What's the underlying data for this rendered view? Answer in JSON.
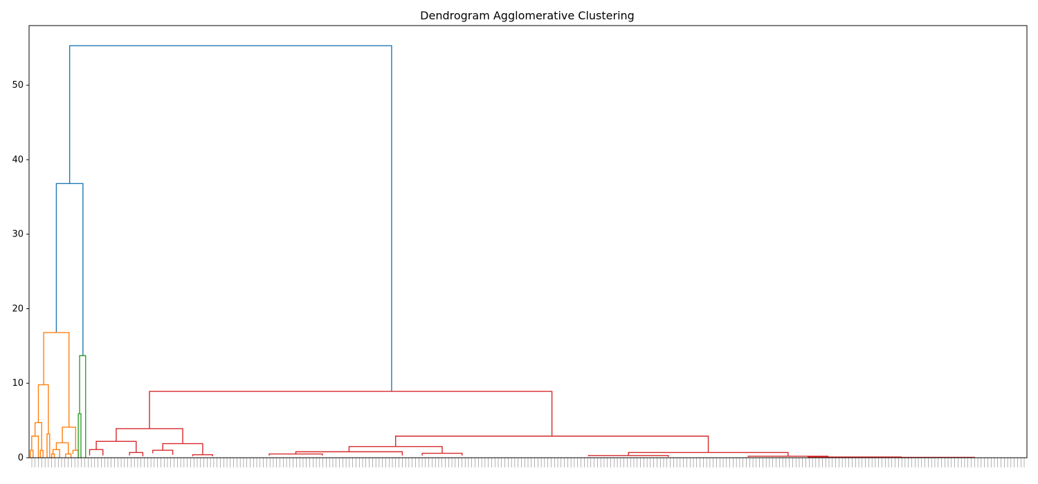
{
  "chart_data": {
    "type": "dendrogram",
    "title": "Dendrogram Agglomerative Clustering",
    "xlabel": "",
    "ylabel": "",
    "ylim": [
      0,
      58
    ],
    "yticks": [
      0,
      10,
      20,
      30,
      40,
      50
    ],
    "grid": false,
    "colors": {
      "top": "#1f77b4",
      "cluster_1": "#ff7f0e",
      "cluster_2": "#2ca02c",
      "cluster_3": "#d62728"
    },
    "leaves": {
      "count": 301
    },
    "links": [
      {
        "left": 6.1,
        "right": 54.5,
        "height": 55.3,
        "left_h": 36.8,
        "right_h": 8.9,
        "color": "top"
      },
      {
        "left": 4.1,
        "right": 8.1,
        "height": 36.8,
        "left_h": 16.8,
        "right_h": 13.7,
        "color": "top"
      },
      {
        "left": 2.2,
        "right": 6.0,
        "height": 16.8,
        "left_h": 9.8,
        "right_h": 4.1,
        "color": "cluster_1"
      },
      {
        "left": 1.4,
        "right": 2.9,
        "height": 9.8,
        "left_h": 4.7,
        "right_h": 3.2,
        "color": "cluster_1"
      },
      {
        "left": 0.9,
        "right": 1.9,
        "height": 4.7,
        "left_h": 2.9,
        "right_h": 1.0,
        "color": "cluster_1"
      },
      {
        "left": 0.4,
        "right": 1.4,
        "height": 2.9,
        "left_h": 1.0,
        "right_h": 0.0,
        "color": "cluster_1"
      },
      {
        "left": 0.2,
        "right": 0.6,
        "height": 1.0,
        "left_h": 0.0,
        "right_h": 0.0,
        "color": "cluster_1"
      },
      {
        "left": 1.7,
        "right": 2.1,
        "height": 1.0,
        "left_h": 0.0,
        "right_h": 0.0,
        "color": "cluster_1"
      },
      {
        "left": 2.7,
        "right": 3.1,
        "height": 3.2,
        "left_h": 0.0,
        "right_h": 0.0,
        "color": "cluster_1"
      },
      {
        "left": 5.0,
        "right": 7.0,
        "height": 4.1,
        "left_h": 2.0,
        "right_h": 1.0,
        "color": "cluster_1"
      },
      {
        "left": 4.1,
        "right": 5.9,
        "height": 2.0,
        "left_h": 1.1,
        "right_h": 0.5,
        "color": "cluster_1"
      },
      {
        "left": 3.6,
        "right": 4.6,
        "height": 1.1,
        "left_h": 0.5,
        "right_h": 0.0,
        "color": "cluster_1"
      },
      {
        "left": 3.4,
        "right": 3.8,
        "height": 0.5,
        "left_h": 0.0,
        "right_h": 0.0,
        "color": "cluster_1"
      },
      {
        "left": 5.5,
        "right": 6.3,
        "height": 0.5,
        "left_h": 0.0,
        "right_h": 0.0,
        "color": "cluster_1"
      },
      {
        "left": 6.6,
        "right": 7.4,
        "height": 1.0,
        "left_h": 0.5,
        "right_h": 0.0,
        "color": "cluster_1"
      },
      {
        "left": 7.6,
        "right": 8.5,
        "height": 13.7,
        "left_h": 5.9,
        "right_h": 0.0,
        "color": "cluster_2"
      },
      {
        "left": 7.4,
        "right": 7.8,
        "height": 5.9,
        "left_h": 0.0,
        "right_h": 0.0,
        "color": "cluster_2"
      },
      {
        "left": 18.1,
        "right": 78.6,
        "height": 8.9,
        "left_h": 3.9,
        "right_h": 2.9,
        "color": "cluster_3"
      },
      {
        "left": 13.1,
        "right": 23.1,
        "height": 3.9,
        "left_h": 2.2,
        "right_h": 1.9,
        "color": "cluster_3"
      },
      {
        "left": 10.1,
        "right": 16.1,
        "height": 2.2,
        "left_h": 1.1,
        "right_h": 0.7,
        "color": "cluster_3"
      },
      {
        "left": 9.1,
        "right": 11.1,
        "height": 1.1,
        "left_h": 0.3,
        "right_h": 0.3,
        "color": "cluster_3"
      },
      {
        "left": 15.1,
        "right": 17.1,
        "height": 0.7,
        "left_h": 0.3,
        "right_h": 0.2,
        "color": "cluster_3"
      },
      {
        "left": 20.1,
        "right": 26.1,
        "height": 1.9,
        "left_h": 1.0,
        "right_h": 0.4,
        "color": "cluster_3"
      },
      {
        "left": 18.6,
        "right": 21.6,
        "height": 1.0,
        "left_h": 0.6,
        "right_h": 0.4,
        "color": "cluster_3"
      },
      {
        "left": 24.6,
        "right": 27.6,
        "height": 0.4,
        "left_h": 0.2,
        "right_h": 0.2,
        "color": "cluster_3"
      },
      {
        "left": 55.1,
        "right": 102.1,
        "height": 2.9,
        "left_h": 1.5,
        "right_h": 0.7,
        "color": "cluster_3"
      },
      {
        "left": 48.1,
        "right": 62.1,
        "height": 1.5,
        "left_h": 0.8,
        "right_h": 0.6,
        "color": "cluster_3"
      },
      {
        "left": 40.1,
        "right": 56.1,
        "height": 0.8,
        "left_h": 0.5,
        "right_h": 0.3,
        "color": "cluster_3"
      },
      {
        "left": 36.1,
        "right": 44.1,
        "height": 0.5,
        "left_h": 0.3,
        "right_h": 0.3,
        "color": "cluster_3"
      },
      {
        "left": 59.1,
        "right": 65.1,
        "height": 0.6,
        "left_h": 0.3,
        "right_h": 0.3,
        "color": "cluster_3"
      },
      {
        "left": 90.1,
        "right": 114.1,
        "height": 0.7,
        "left_h": 0.3,
        "right_h": 0.2,
        "color": "cluster_3"
      },
      {
        "left": 84.1,
        "right": 96.1,
        "height": 0.3,
        "left_h": 0.2,
        "right_h": 0.1,
        "color": "cluster_3"
      },
      {
        "left": 108.1,
        "right": 120.1,
        "height": 0.2,
        "left_h": 0.1,
        "right_h": 0.1,
        "color": "cluster_3"
      },
      {
        "left": 117.1,
        "right": 131.1,
        "height": 0.1,
        "left_h": 0.0,
        "right_h": 0.0,
        "color": "cluster_3"
      },
      {
        "left": 128.1,
        "right": 142.1,
        "height": 0.05,
        "left_h": 0.0,
        "right_h": 0.0,
        "color": "cluster_3"
      }
    ]
  }
}
